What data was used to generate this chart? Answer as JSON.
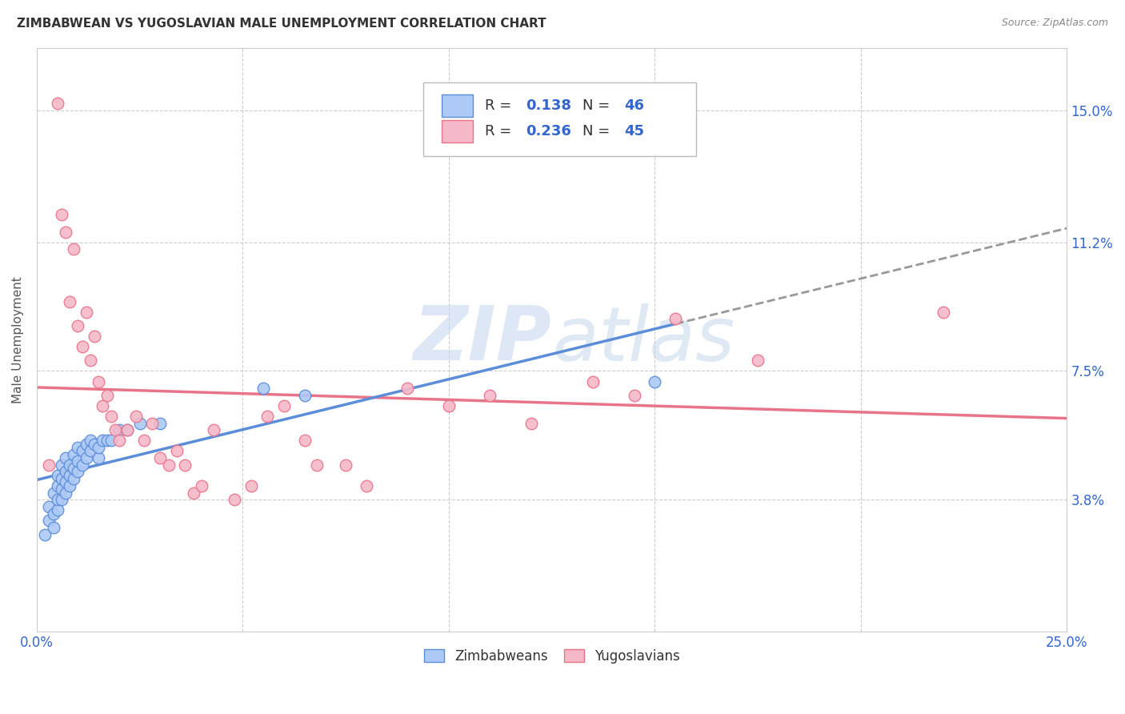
{
  "title": "ZIMBABWEAN VS YUGOSLAVIAN MALE UNEMPLOYMENT CORRELATION CHART",
  "source": "Source: ZipAtlas.com",
  "ylabel": "Male Unemployment",
  "yticks_labels": [
    "15.0%",
    "11.2%",
    "7.5%",
    "3.8%"
  ],
  "yticks_values": [
    0.15,
    0.112,
    0.075,
    0.038
  ],
  "xlim": [
    0.0,
    0.25
  ],
  "ylim": [
    0.0,
    0.168
  ],
  "legend_r_zim": "0.138",
  "legend_n_zim": "46",
  "legend_r_yug": "0.236",
  "legend_n_yug": "45",
  "zim_color": "#adc9f5",
  "yug_color": "#f5b8c8",
  "zim_edge_color": "#5b8dd9",
  "yug_edge_color": "#e8748a",
  "zim_line_color": "#5b8dd9",
  "yug_line_color": "#e8748a",
  "zim_line_end_x": 0.155,
  "watermark_zip": "ZIP",
  "watermark_atlas": "atlas",
  "zim_x": [
    0.002,
    0.003,
    0.003,
    0.004,
    0.004,
    0.004,
    0.005,
    0.005,
    0.005,
    0.005,
    0.006,
    0.006,
    0.006,
    0.006,
    0.007,
    0.007,
    0.007,
    0.007,
    0.008,
    0.008,
    0.008,
    0.009,
    0.009,
    0.009,
    0.01,
    0.01,
    0.01,
    0.011,
    0.011,
    0.012,
    0.012,
    0.013,
    0.013,
    0.014,
    0.015,
    0.015,
    0.016,
    0.017,
    0.018,
    0.02,
    0.022,
    0.025,
    0.03,
    0.055,
    0.065,
    0.15
  ],
  "zim_y": [
    0.028,
    0.032,
    0.036,
    0.03,
    0.034,
    0.04,
    0.035,
    0.038,
    0.042,
    0.045,
    0.038,
    0.041,
    0.044,
    0.048,
    0.04,
    0.043,
    0.046,
    0.05,
    0.042,
    0.045,
    0.048,
    0.044,
    0.047,
    0.051,
    0.046,
    0.049,
    0.053,
    0.048,
    0.052,
    0.05,
    0.054,
    0.052,
    0.055,
    0.054,
    0.05,
    0.053,
    0.055,
    0.055,
    0.055,
    0.058,
    0.058,
    0.06,
    0.06,
    0.07,
    0.068,
    0.072
  ],
  "yug_x": [
    0.003,
    0.005,
    0.006,
    0.007,
    0.008,
    0.009,
    0.01,
    0.011,
    0.012,
    0.013,
    0.014,
    0.015,
    0.016,
    0.017,
    0.018,
    0.019,
    0.02,
    0.022,
    0.024,
    0.026,
    0.028,
    0.03,
    0.032,
    0.034,
    0.036,
    0.038,
    0.04,
    0.043,
    0.048,
    0.052,
    0.056,
    0.06,
    0.065,
    0.068,
    0.075,
    0.08,
    0.09,
    0.1,
    0.11,
    0.12,
    0.135,
    0.145,
    0.155,
    0.175,
    0.22
  ],
  "yug_y": [
    0.048,
    0.152,
    0.12,
    0.115,
    0.095,
    0.11,
    0.088,
    0.082,
    0.092,
    0.078,
    0.085,
    0.072,
    0.065,
    0.068,
    0.062,
    0.058,
    0.055,
    0.058,
    0.062,
    0.055,
    0.06,
    0.05,
    0.048,
    0.052,
    0.048,
    0.04,
    0.042,
    0.058,
    0.038,
    0.042,
    0.062,
    0.065,
    0.055,
    0.048,
    0.048,
    0.042,
    0.07,
    0.065,
    0.068,
    0.06,
    0.072,
    0.068,
    0.09,
    0.078,
    0.092
  ]
}
